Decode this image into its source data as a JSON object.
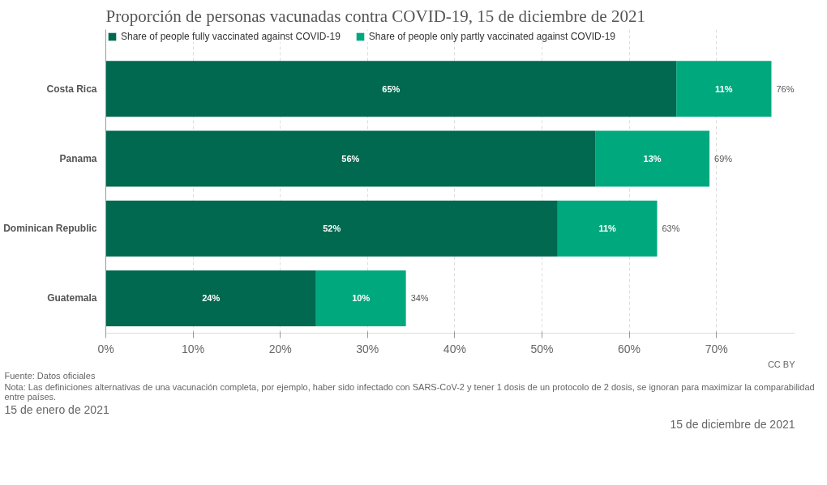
{
  "chart_data": {
    "type": "bar",
    "orientation": "horizontal",
    "stacked": true,
    "title": "Proporción de personas vacunadas contra COVID-19, 15 de diciembre de 2021",
    "categories": [
      "Costa Rica",
      "Panama",
      "Dominican Republic",
      "Guatemala"
    ],
    "series": [
      {
        "name": "Share of people fully vaccinated against COVID-19",
        "color": "#00694f",
        "values": [
          65.4,
          56.1,
          51.8,
          24.1
        ],
        "value_labels": [
          "65%",
          "56%",
          "52%",
          "24%"
        ]
      },
      {
        "name": "Share of people only partly vaccinated against COVID-19",
        "color": "#00a87e",
        "values": [
          10.9,
          13.1,
          11.4,
          10.3
        ],
        "value_labels": [
          "11%",
          "13%",
          "11%",
          "10%"
        ]
      }
    ],
    "totals": [
      "76%",
      "69%",
      "63%",
      "34%"
    ],
    "xlim": [
      0,
      79
    ],
    "xticks": [
      {
        "value": 0,
        "label": "0%"
      },
      {
        "value": 10,
        "label": "10%"
      },
      {
        "value": 20,
        "label": "20%"
      },
      {
        "value": 30,
        "label": "30%"
      },
      {
        "value": 40,
        "label": "40%"
      },
      {
        "value": 50,
        "label": "50%"
      },
      {
        "value": 60,
        "label": "60%"
      },
      {
        "value": 70,
        "label": "70%"
      }
    ],
    "grid": "x",
    "legend": "top left",
    "annotations": [
      "Fuente: Datos oficiales",
      "Nota: Las definiciones alternativas de una vacunación completa, por ejemplo, haber sido infectado con SARS-CoV-2 y tener 1 dosis de un protocolo de 2 dosis, se ignoran para maximizar la comparabilidad entre países.",
      "CC BY",
      "15 de enero de 2021",
      "15 de diciembre de 2021"
    ]
  }
}
